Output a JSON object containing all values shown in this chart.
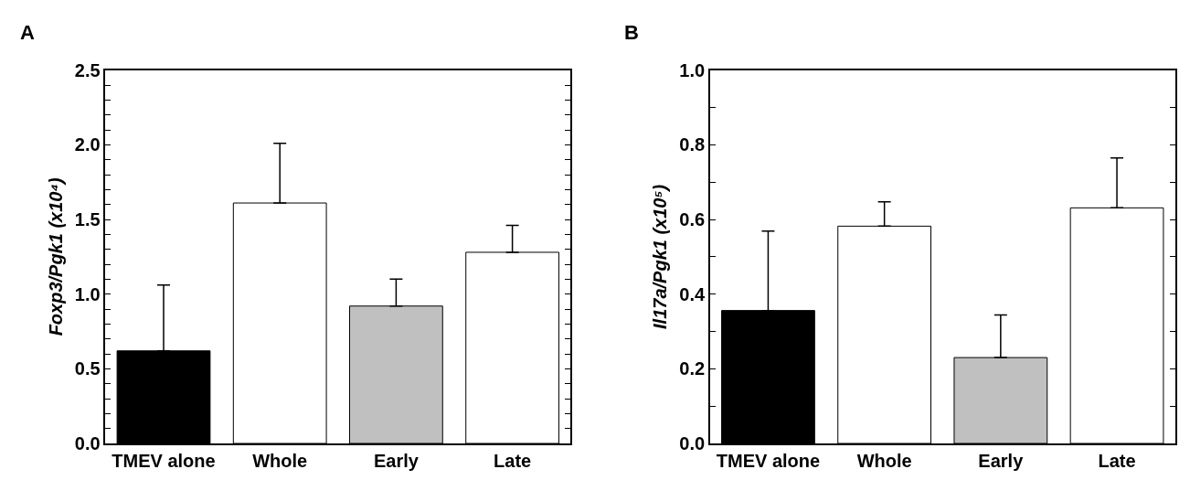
{
  "chart_data": [
    {
      "type": "bar",
      "title": "A",
      "ylabel": "Foxp3/Pgk1 (x10⁴)",
      "categories": [
        "TMEV alone",
        "Whole",
        "Early",
        "Late"
      ],
      "values": [
        0.62,
        1.61,
        0.92,
        1.28
      ],
      "colors": [
        "#000000",
        "#ffffff",
        "#c0c0c0",
        "#ffffff"
      ],
      "errors": [
        [
          0.62,
          1.06
        ],
        [
          1.61,
          2.01
        ],
        [
          0.92,
          1.1
        ],
        [
          1.28,
          1.46
        ]
      ],
      "ylim": [
        0,
        2.5
      ],
      "yticks": [
        {
          "value": 0.0,
          "label": "0.0"
        },
        {
          "value": 0.1,
          "label": null
        },
        {
          "value": 0.2,
          "label": null
        },
        {
          "value": 0.3,
          "label": null
        },
        {
          "value": 0.4,
          "label": null
        },
        {
          "value": 0.5,
          "label": "0.5"
        },
        {
          "value": 0.6,
          "label": null
        },
        {
          "value": 0.7,
          "label": null
        },
        {
          "value": 0.8,
          "label": null
        },
        {
          "value": 0.9,
          "label": null
        },
        {
          "value": 1.0,
          "label": "1.0"
        },
        {
          "value": 1.1,
          "label": null
        },
        {
          "value": 1.2,
          "label": null
        },
        {
          "value": 1.3,
          "label": null
        },
        {
          "value": 1.4,
          "label": null
        },
        {
          "value": 1.5,
          "label": "1.5"
        },
        {
          "value": 1.6,
          "label": null
        },
        {
          "value": 1.7,
          "label": null
        },
        {
          "value": 1.8,
          "label": null
        },
        {
          "value": 1.9,
          "label": null
        },
        {
          "value": 2.0,
          "label": "2.0"
        },
        {
          "value": 2.1,
          "label": null
        },
        {
          "value": 2.2,
          "label": null
        },
        {
          "value": 2.3,
          "label": null
        },
        {
          "value": 2.4,
          "label": null
        },
        {
          "value": 2.5,
          "label": "2.5"
        }
      ]
    },
    {
      "type": "bar",
      "title": "B",
      "ylabel": "Il17a/Pgk1 (x10⁵)",
      "categories": [
        "TMEV alone",
        "Whole",
        "Early",
        "Late"
      ],
      "values": [
        0.356,
        0.582,
        0.23,
        0.631
      ],
      "colors": [
        "#000000",
        "#ffffff",
        "#c0c0c0",
        "#ffffff"
      ],
      "errors": [
        [
          0.356,
          0.569
        ],
        [
          0.582,
          0.647
        ],
        [
          0.23,
          0.344
        ],
        [
          0.631,
          0.765
        ]
      ],
      "ylim": [
        0,
        1.0
      ],
      "yticks": [
        {
          "value": 0.0,
          "label": "0.0"
        },
        {
          "value": 0.1,
          "label": null
        },
        {
          "value": 0.2,
          "label": "0.2"
        },
        {
          "value": 0.3,
          "label": null
        },
        {
          "value": 0.4,
          "label": "0.4"
        },
        {
          "value": 0.5,
          "label": null
        },
        {
          "value": 0.6,
          "label": "0.6"
        },
        {
          "value": 0.7,
          "label": null
        },
        {
          "value": 0.8,
          "label": "0.8"
        },
        {
          "value": 0.9,
          "label": null
        },
        {
          "value": 1.0,
          "label": "1.0"
        }
      ]
    }
  ]
}
